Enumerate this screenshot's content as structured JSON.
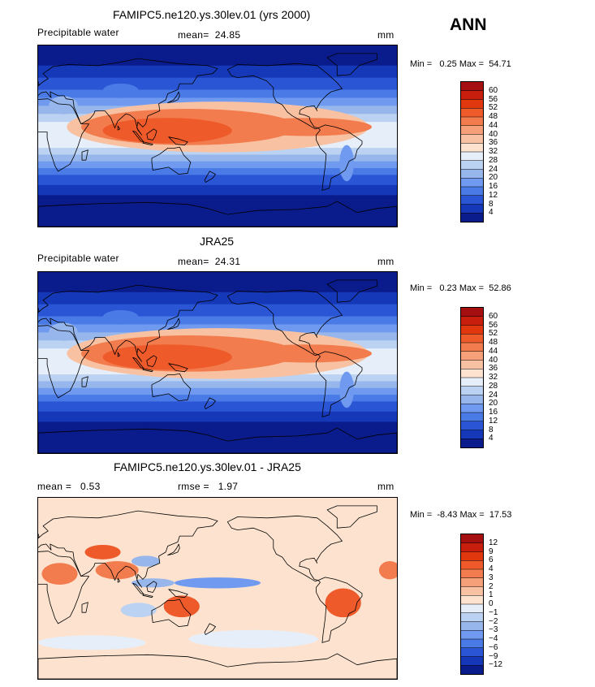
{
  "season": "ANN",
  "panels": [
    {
      "id": "model",
      "title": "FAMIPC5.ne120.ys.30lev.01 (yrs 2000)",
      "left_label": "Precipitable water",
      "center_label": "mean=  24.85",
      "right_label": "mm",
      "min_max": "Min =   0.25 Max =  54.71",
      "field": "absolute"
    },
    {
      "id": "obs",
      "title": "JRA25",
      "left_label": "Precipitable water",
      "center_label": "mean=  24.31",
      "right_label": "mm",
      "min_max": "Min =   0.23 Max =  52.86",
      "field": "absolute"
    },
    {
      "id": "diff",
      "title": "FAMIPC5.ne120.ys.30lev.01 - JRA25",
      "left_label": "mean =   0.53",
      "center_label": "rmse =   1.97",
      "right_label": "mm",
      "min_max": "Min =  -8.43 Max =  17.53",
      "field": "difference"
    }
  ],
  "colorbars": {
    "absolute": {
      "levels": [
        "60",
        "56",
        "52",
        "48",
        "44",
        "40",
        "36",
        "32",
        "28",
        "24",
        "20",
        "16",
        "12",
        "8",
        "4"
      ],
      "colors": [
        "#a50f0f",
        "#c81e0e",
        "#e0370f",
        "#ee5a2a",
        "#f27c4d",
        "#f6a079",
        "#f8c2a2",
        "#fde3cf",
        "#e6eefa",
        "#bcd2f2",
        "#97b7ec",
        "#6f9af0",
        "#4a7ae6",
        "#2a55d4",
        "#1438b8",
        "#0a1c8c"
      ]
    },
    "difference": {
      "levels": [
        "12",
        "9",
        "6",
        "4",
        "3",
        "2",
        "1",
        "0",
        "−1",
        "−2",
        "−3",
        "−4",
        "−6",
        "−9",
        "−12"
      ],
      "colors": [
        "#a50f0f",
        "#c81e0e",
        "#e0370f",
        "#ee5a2a",
        "#f27c4d",
        "#f6a079",
        "#f8c2a2",
        "#fde3cf",
        "#e6eefa",
        "#bcd2f2",
        "#97b7ec",
        "#6f9af0",
        "#4a7ae6",
        "#2a55d4",
        "#1438b8",
        "#0a1c8c"
      ]
    }
  },
  "chart_data": [
    {
      "type": "heatmap",
      "title": "FAMIPC5.ne120.ys.30lev.01 (yrs 2000)",
      "variable": "Precipitable water",
      "units": "mm",
      "mean": 24.85,
      "min": 0.25,
      "max": 54.71,
      "contour_levels": [
        4,
        8,
        12,
        16,
        20,
        24,
        28,
        32,
        36,
        40,
        44,
        48,
        52,
        56,
        60
      ]
    },
    {
      "type": "heatmap",
      "title": "JRA25",
      "variable": "Precipitable water",
      "units": "mm",
      "mean": 24.31,
      "min": 0.23,
      "max": 52.86,
      "contour_levels": [
        4,
        8,
        12,
        16,
        20,
        24,
        28,
        32,
        36,
        40,
        44,
        48,
        52,
        56,
        60
      ]
    },
    {
      "type": "heatmap",
      "title": "FAMIPC5.ne120.ys.30lev.01 - JRA25",
      "units": "mm",
      "mean": 0.53,
      "rmse": 1.97,
      "min": -8.43,
      "max": 17.53,
      "contour_levels": [
        -12,
        -9,
        -6,
        -4,
        -3,
        -2,
        -1,
        0,
        1,
        2,
        3,
        4,
        6,
        9,
        12
      ]
    }
  ]
}
